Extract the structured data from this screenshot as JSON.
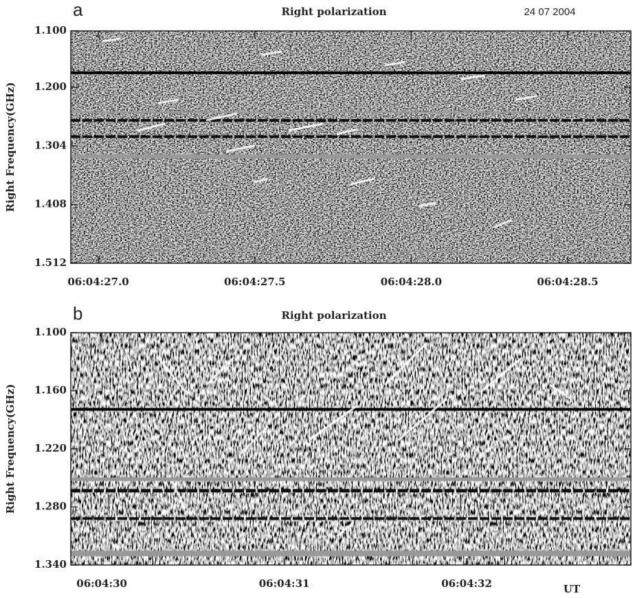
{
  "chart_data": [
    {
      "type": "spectrogram",
      "panel": "a",
      "title": "Right polarization",
      "date": "24 07 2004",
      "ylabel": "Right Frequency(GHz)",
      "ylim": [
        1.1,
        1.512
      ],
      "yticks": [
        {
          "value": 1.1,
          "label": "1.100"
        },
        {
          "value": 1.2,
          "label": "1.200"
        },
        {
          "value": 1.304,
          "label": "1.304"
        },
        {
          "value": 1.408,
          "label": "1.408"
        },
        {
          "value": 1.512,
          "label": "1.512"
        }
      ],
      "xlim": [
        26.912,
        28.702
      ],
      "xticks": [
        {
          "value": 27.0,
          "label": "06:04:27.0"
        },
        {
          "value": 27.5,
          "label": "06:04:27.5"
        },
        {
          "value": 28.0,
          "label": "06:04:28.0"
        },
        {
          "value": 28.5,
          "label": "06:04:28.5"
        }
      ]
    },
    {
      "type": "spectrogram",
      "panel": "b",
      "title": "Right polarization",
      "ylabel": "Right Frequency(GHz)",
      "xlabel": "UT",
      "ylim": [
        1.1,
        1.34
      ],
      "yticks": [
        {
          "value": 1.1,
          "label": "1.100"
        },
        {
          "value": 1.16,
          "label": "1.160"
        },
        {
          "value": 1.22,
          "label": "1.220"
        },
        {
          "value": 1.28,
          "label": "1.280"
        },
        {
          "value": 1.34,
          "label": "1.340"
        }
      ],
      "xlim": [
        29.83,
        32.9
      ],
      "xticks": [
        {
          "value": 30,
          "label": "06:04:30"
        },
        {
          "value": 31,
          "label": "06:04:31"
        },
        {
          "value": 32,
          "label": "06:04:32"
        }
      ]
    }
  ]
}
